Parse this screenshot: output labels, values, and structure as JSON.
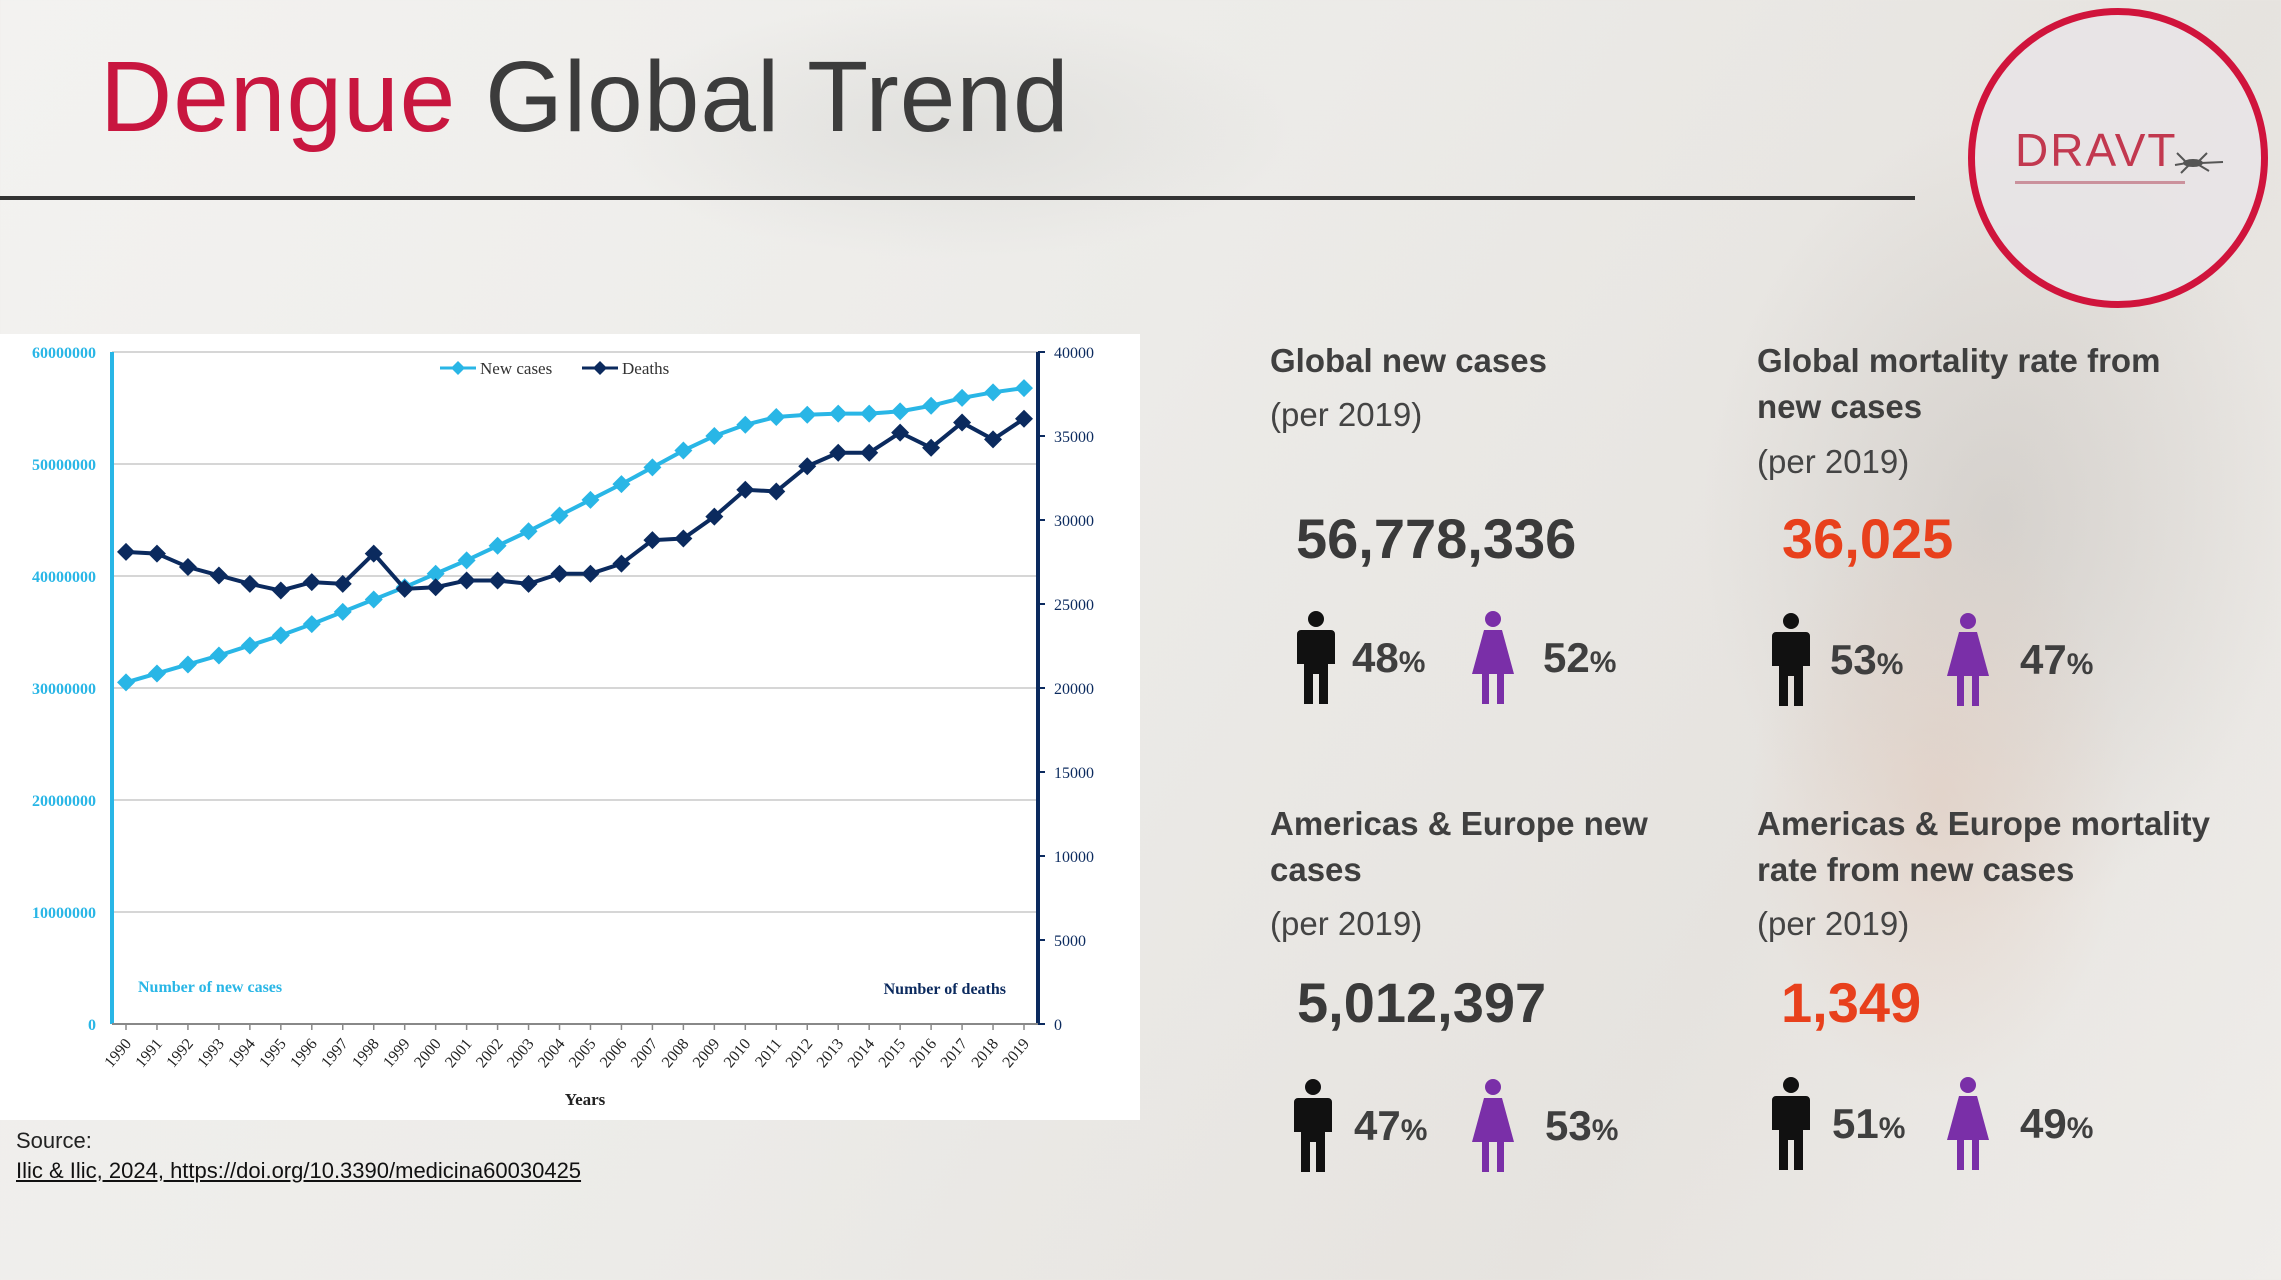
{
  "slide": {
    "title_part1": "Dengue",
    "title_part2": "Global Trend",
    "logo_text": "DRAVT",
    "accent_color": "#c8163f",
    "highlight_color": "#e8401c",
    "male_color": "#111111",
    "female_color": "#7a2fa8"
  },
  "source": {
    "label": "Source:",
    "citation": "Ilic & Ilic, 2024, https://doi.org/10.3390/medicina60030425"
  },
  "stats": [
    {
      "title": "Global new cases",
      "sub": "(per 2019)",
      "value": "56,778,336",
      "value_highlight": false,
      "male_pct": "48",
      "female_pct": "52"
    },
    {
      "title": "Global mortality rate from new cases",
      "sub": "(per 2019)",
      "value": "36,025",
      "value_highlight": true,
      "male_pct": "53",
      "female_pct": "47"
    },
    {
      "title": "Americas & Europe new cases",
      "sub": "(per 2019)",
      "value": "5,012,397",
      "value_highlight": false,
      "male_pct": "47",
      "female_pct": "53"
    },
    {
      "title": "Americas & Europe mortality rate from new cases",
      "sub": "(per 2019)",
      "value": "1,349",
      "value_highlight": true,
      "male_pct": "51",
      "female_pct": "49"
    }
  ],
  "pct_sign": "%",
  "chart_data": {
    "type": "line",
    "title": "",
    "x": [
      "1990",
      "1991",
      "1992",
      "1993",
      "1994",
      "1995",
      "1996",
      "1997",
      "1998",
      "1999",
      "2000",
      "2001",
      "2002",
      "2003",
      "2004",
      "2005",
      "2006",
      "2007",
      "2008",
      "2009",
      "2010",
      "2011",
      "2012",
      "2013",
      "2014",
      "2015",
      "2016",
      "2017",
      "2018",
      "2019"
    ],
    "xlabel": "Years",
    "ylabel_left": "Number of new cases",
    "ylabel_right": "Number of deaths",
    "ylim_left": [
      0,
      60000000
    ],
    "ylim_right": [
      0,
      40000
    ],
    "yticks_left": [
      "0",
      "10000000",
      "20000000",
      "30000000",
      "40000000",
      "50000000",
      "60000000"
    ],
    "yticks_right": [
      "0",
      "5000",
      "10000",
      "15000",
      "20000",
      "25000",
      "30000",
      "35000",
      "40000"
    ],
    "legend": [
      "New cases",
      "Deaths"
    ],
    "legend_position": "top-center",
    "grid": true,
    "series": [
      {
        "name": "New cases",
        "axis": "left",
        "color": "#29b6e6",
        "values": [
          30500000,
          31300000,
          32100000,
          32900000,
          33800000,
          34700000,
          35700000,
          36800000,
          37900000,
          39000000,
          40200000,
          41400000,
          42700000,
          44000000,
          45400000,
          46800000,
          48200000,
          49700000,
          51200000,
          52500000,
          53500000,
          54200000,
          54400000,
          54500000,
          54500000,
          54700000,
          55200000,
          55900000,
          56400000,
          56778336
        ]
      },
      {
        "name": "Deaths",
        "axis": "right",
        "color": "#0b2a5e",
        "values": [
          28100,
          28000,
          27200,
          26700,
          26200,
          25800,
          26300,
          26200,
          28000,
          25900,
          26000,
          26400,
          26400,
          26200,
          26800,
          26800,
          27400,
          28800,
          28900,
          30200,
          31800,
          31700,
          33200,
          34000,
          34000,
          35200,
          34300,
          35800,
          34800,
          36025
        ]
      }
    ]
  }
}
